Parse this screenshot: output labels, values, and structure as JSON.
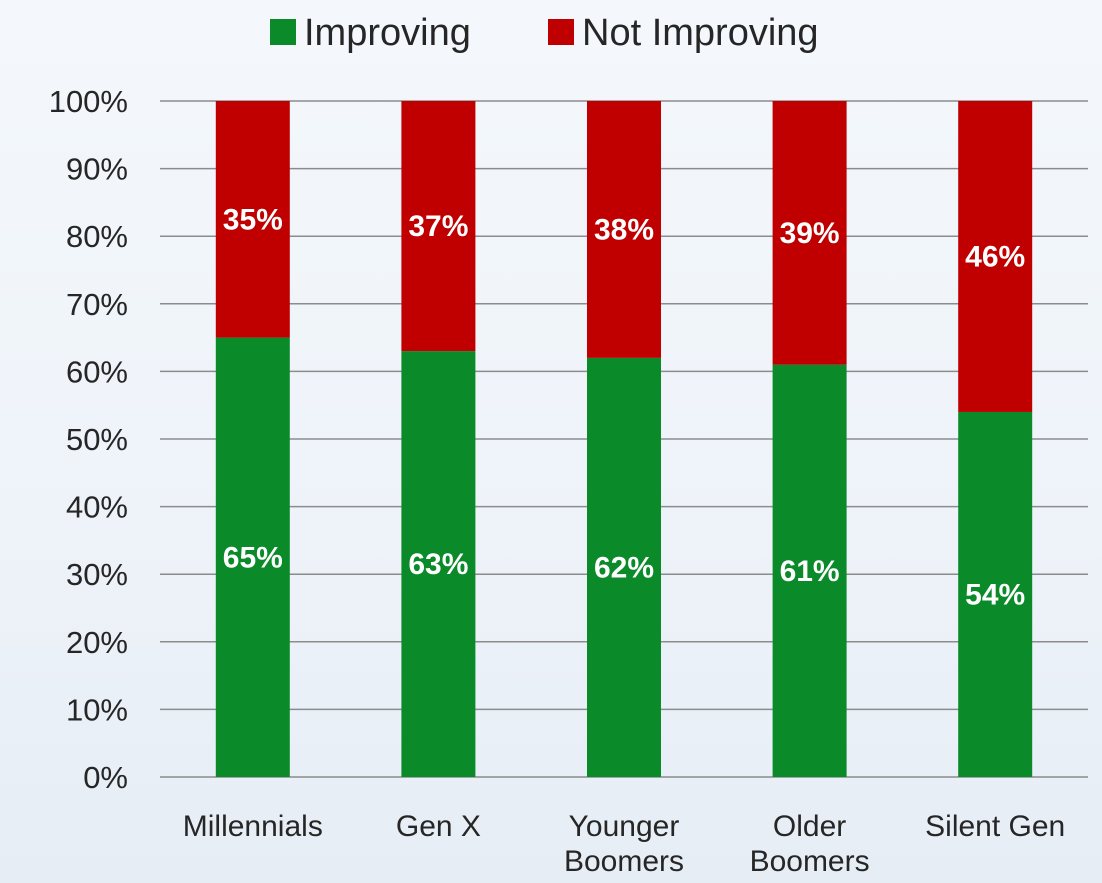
{
  "chart_data": {
    "type": "bar",
    "stacked": true,
    "categories": [
      [
        "Millennials"
      ],
      [
        "Gen X"
      ],
      [
        "Younger",
        "Boomers"
      ],
      [
        "Older",
        "Boomers"
      ],
      [
        "Silent Gen"
      ]
    ],
    "series": [
      {
        "name": "Improving",
        "color": "#0b8a2a",
        "values": [
          65,
          63,
          62,
          61,
          54
        ]
      },
      {
        "name": "Not Improving",
        "color": "#c00000",
        "values": [
          35,
          37,
          38,
          39,
          46
        ]
      }
    ],
    "data_labels": {
      "Improving": [
        "65%",
        "63%",
        "62%",
        "61%",
        "54%"
      ],
      "Not Improving": [
        "35%",
        "37%",
        "38%",
        "39%",
        "46%"
      ]
    },
    "y_ticks": [
      "0%",
      "10%",
      "20%",
      "30%",
      "40%",
      "50%",
      "60%",
      "70%",
      "80%",
      "90%",
      "100%"
    ],
    "ylim": [
      0,
      100
    ],
    "grid": true,
    "legend_position": "top"
  }
}
